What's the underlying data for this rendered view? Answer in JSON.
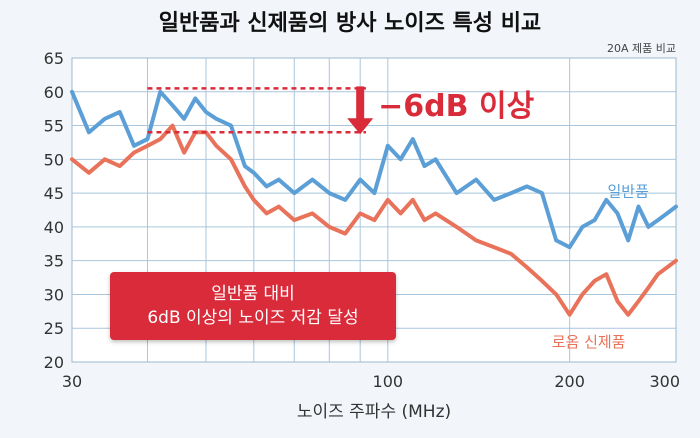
{
  "chart_data": {
    "type": "line",
    "title": "일반품과 신제품의 방사 노이즈 특성 비교",
    "subtitle": "20A 제품 비교",
    "xlabel": "노이즈 주파수 (MHz)",
    "ylabel": "",
    "x_scale": "log",
    "xlim": [
      30,
      300
    ],
    "ylim": [
      20,
      65
    ],
    "x_ticks": [
      30,
      100,
      200,
      300
    ],
    "y_ticks": [
      20,
      25,
      30,
      35,
      40,
      45,
      50,
      55,
      60,
      65
    ],
    "grid": true,
    "series": [
      {
        "name": "일반품",
        "color": "#5b9fd6",
        "x": [
          30,
          32,
          34,
          36,
          38,
          40,
          42,
          44,
          46,
          48,
          50,
          52,
          55,
          58,
          60,
          63,
          66,
          70,
          75,
          80,
          85,
          90,
          95,
          100,
          105,
          110,
          115,
          120,
          130,
          140,
          150,
          160,
          170,
          180,
          190,
          200,
          210,
          220,
          230,
          240,
          250,
          260,
          270,
          280,
          290,
          300
        ],
        "values": [
          60,
          54,
          56,
          57,
          52,
          53,
          60,
          58,
          56,
          59,
          57,
          56,
          55,
          49,
          48,
          46,
          47,
          45,
          47,
          45,
          44,
          47,
          45,
          52,
          50,
          53,
          49,
          50,
          45,
          47,
          44,
          45,
          46,
          45,
          38,
          37,
          40,
          41,
          44,
          42,
          38,
          43,
          40,
          41,
          42,
          43
        ]
      },
      {
        "name": "로옴 신제품",
        "color": "#e8735a",
        "x": [
          30,
          32,
          34,
          36,
          38,
          40,
          42,
          44,
          46,
          48,
          50,
          52,
          55,
          58,
          60,
          63,
          66,
          70,
          75,
          80,
          85,
          90,
          95,
          100,
          105,
          110,
          115,
          120,
          130,
          140,
          150,
          160,
          170,
          180,
          190,
          200,
          210,
          220,
          230,
          240,
          250,
          260,
          270,
          280,
          290,
          300
        ],
        "values": [
          50,
          48,
          50,
          49,
          51,
          52,
          53,
          55,
          51,
          54,
          54,
          52,
          50,
          46,
          44,
          42,
          43,
          41,
          42,
          40,
          39,
          42,
          41,
          44,
          42,
          44,
          41,
          42,
          40,
          38,
          37,
          36,
          34,
          32,
          30,
          27,
          30,
          32,
          33,
          29,
          27,
          29,
          31,
          33,
          34,
          35
        ]
      }
    ],
    "annotations": {
      "reduction": "−6dB 이상",
      "callout_line1": "일반품 대비",
      "callout_line2": "6dB 이상의 노이즈 저감 달성"
    },
    "colors": {
      "accent": "#d92b3a",
      "grid": "#a9c6dd",
      "background": "#f2f6fa",
      "plot_bg": "#ffffff"
    }
  }
}
